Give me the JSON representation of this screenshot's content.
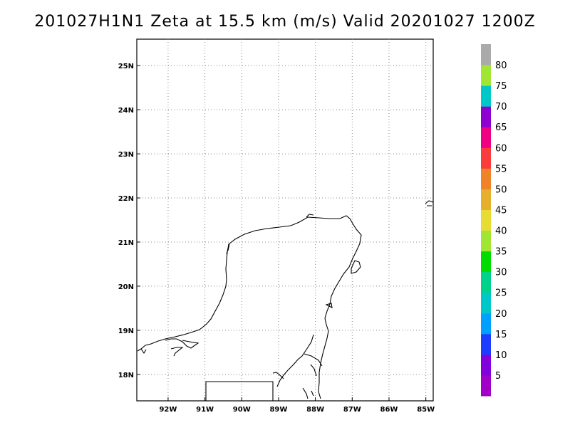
{
  "title": "201027H1N1 Zeta at 15.5 km (m/s) Valid 20201027 1200Z",
  "axes": {
    "x_ticks": [
      "92W",
      "91W",
      "90W",
      "89W",
      "88W",
      "87W",
      "86W",
      "85W"
    ],
    "y_ticks": [
      "18N",
      "19N",
      "20N",
      "21N",
      "22N",
      "23N",
      "24N",
      "25N"
    ],
    "lon_range": [
      -92.85,
      -84.8
    ],
    "lat_range": [
      17.4,
      25.6
    ],
    "grid": "dotted"
  },
  "colorbar": {
    "labels": [
      "5",
      "10",
      "15",
      "20",
      "25",
      "30",
      "35",
      "40",
      "45",
      "50",
      "55",
      "60",
      "65",
      "70",
      "75",
      "80"
    ],
    "colors": [
      "#a000c8",
      "#8200dc",
      "#1e3cff",
      "#00a0ff",
      "#00c8c8",
      "#00d28c",
      "#00dc00",
      "#a0e632",
      "#e6dc32",
      "#e6af2d",
      "#f08228",
      "#fa3c3c",
      "#f00082",
      "#8c00d2",
      "#00c8c8",
      "#a0e632",
      "#aaaaaa"
    ]
  }
}
